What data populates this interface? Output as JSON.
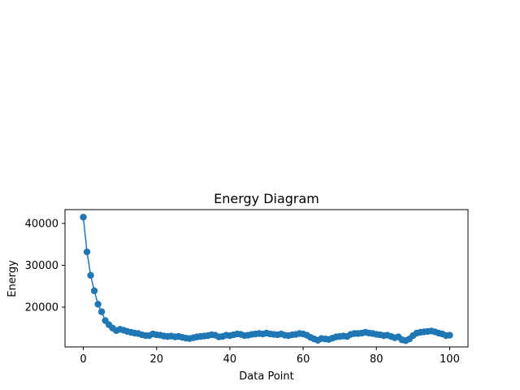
{
  "chart_data": {
    "type": "line",
    "title": "Energy Diagram",
    "xlabel": "Data Point",
    "ylabel": "Energy",
    "xlim": [
      -5,
      105
    ],
    "ylim": [
      10500,
      43300
    ],
    "xticks": [
      0,
      20,
      40,
      60,
      80,
      100
    ],
    "yticks": [
      20000,
      30000,
      40000
    ],
    "grid": false,
    "legend": "none",
    "series_color": "#1f77b4",
    "marker": "circle",
    "x": [
      0,
      1,
      2,
      3,
      4,
      5,
      6,
      7,
      8,
      9,
      10,
      11,
      12,
      13,
      14,
      15,
      16,
      17,
      18,
      19,
      20,
      21,
      22,
      23,
      24,
      25,
      26,
      27,
      28,
      29,
      30,
      31,
      32,
      33,
      34,
      35,
      36,
      37,
      38,
      39,
      40,
      41,
      42,
      43,
      44,
      45,
      46,
      47,
      48,
      49,
      50,
      51,
      52,
      53,
      54,
      55,
      56,
      57,
      58,
      59,
      60,
      61,
      62,
      63,
      64,
      65,
      66,
      67,
      68,
      69,
      70,
      71,
      72,
      73,
      74,
      75,
      76,
      77,
      78,
      79,
      80,
      81,
      82,
      83,
      84,
      85,
      86,
      87,
      88,
      89,
      90,
      91,
      92,
      93,
      94,
      95,
      96,
      97,
      98,
      99,
      100
    ],
    "values": [
      41500,
      33200,
      27600,
      23900,
      20700,
      18900,
      16800,
      15800,
      15000,
      14400,
      14700,
      14500,
      14200,
      14000,
      13800,
      13700,
      13400,
      13200,
      13200,
      13600,
      13400,
      13300,
      13100,
      13000,
      13100,
      12900,
      13000,
      12800,
      12600,
      12500,
      12700,
      12900,
      13000,
      13100,
      13200,
      13400,
      13300,
      12900,
      13000,
      13300,
      13200,
      13400,
      13600,
      13500,
      13200,
      13300,
      13500,
      13600,
      13700,
      13600,
      13800,
      13600,
      13500,
      13400,
      13600,
      13300,
      13200,
      13400,
      13500,
      13700,
      13600,
      13300,
      12800,
      12400,
      12100,
      12500,
      12400,
      12300,
      12600,
      12900,
      13000,
      13100,
      13000,
      13500,
      13700,
      13700,
      13800,
      14000,
      13800,
      13700,
      13500,
      13400,
      13200,
      13300,
      13000,
      12700,
      12900,
      12200,
      12000,
      12400,
      13200,
      13800,
      14000,
      14100,
      14200,
      14300,
      14100,
      13800,
      13600,
      13200,
      13300
    ]
  }
}
